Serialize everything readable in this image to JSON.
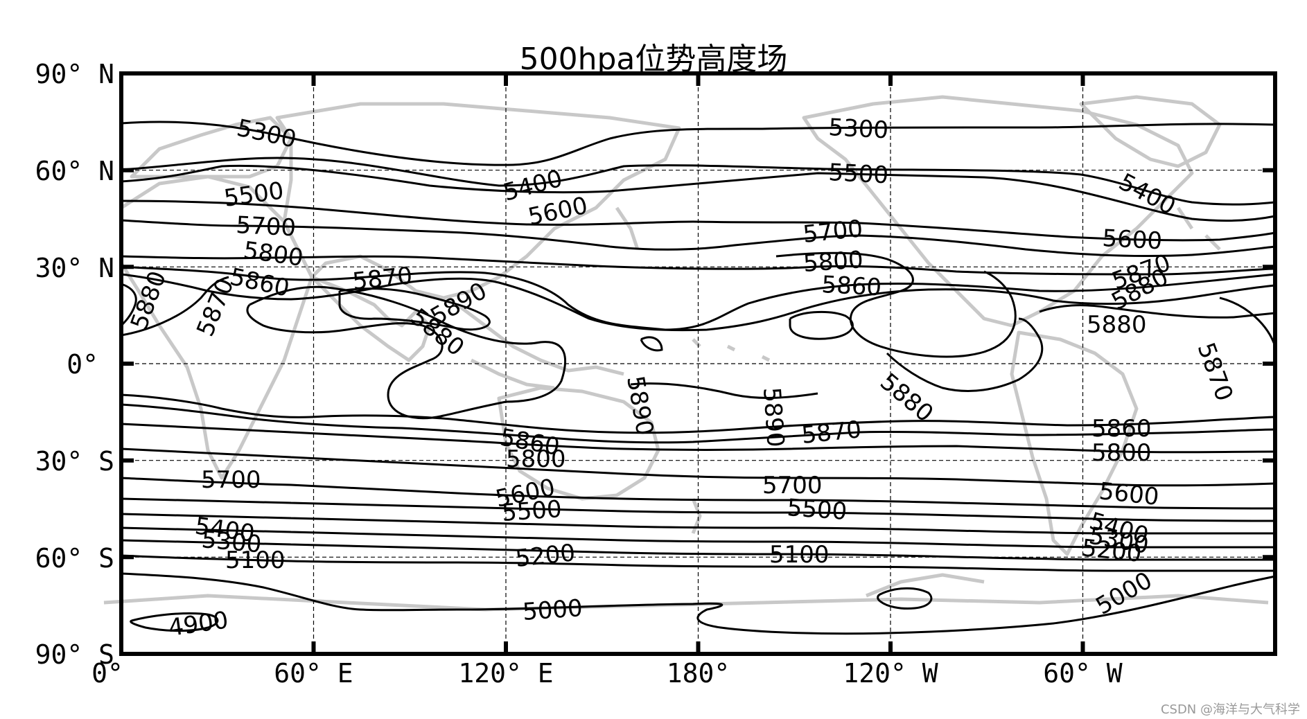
{
  "title": "500hpa位势高度场",
  "lat_labels": [
    "90° N",
    "60° N",
    "30° N",
    "0°",
    "30° S",
    "60° S",
    "90° S"
  ],
  "lon_labels": [
    "0°",
    "60° E",
    "120° E",
    "180°",
    "120° W",
    "60° W"
  ],
  "watermark": "CSDN @海洋与大气科学",
  "colors": {
    "contour": "#000000",
    "coastline": "#c8c8c8",
    "grid": "#000000",
    "background": "#ffffff"
  },
  "chart_data": {
    "type": "contour",
    "field": "500 hPa geopotential height",
    "projection": "plate carree",
    "lon_range": [
      0,
      360
    ],
    "lat_range": [
      -90,
      90
    ],
    "grid": true,
    "coastlines": true,
    "contour_levels": [
      4900,
      5000,
      5100,
      5200,
      5300,
      5400,
      5500,
      5600,
      5700,
      5800,
      5860,
      5870,
      5880,
      5890
    ],
    "contour_labels": [
      "5300",
      "5300",
      "5500",
      "5500",
      "5400",
      "5400",
      "5600",
      "5600",
      "5700",
      "5700",
      "5800",
      "5800",
      "5860",
      "5860",
      "5870",
      "5870",
      "5870",
      "5880",
      "5880",
      "5880",
      "5880",
      "5890",
      "5890",
      "5890",
      "5870",
      "5860",
      "5800",
      "5700",
      "5600",
      "5500",
      "5400",
      "5300",
      "5100",
      "5200",
      "5000",
      "4900",
      "5860",
      "5800",
      "5700",
      "5600",
      "5500",
      "5100",
      "5000",
      "5400",
      "5300",
      "5200",
      "5870",
      "5880"
    ]
  }
}
